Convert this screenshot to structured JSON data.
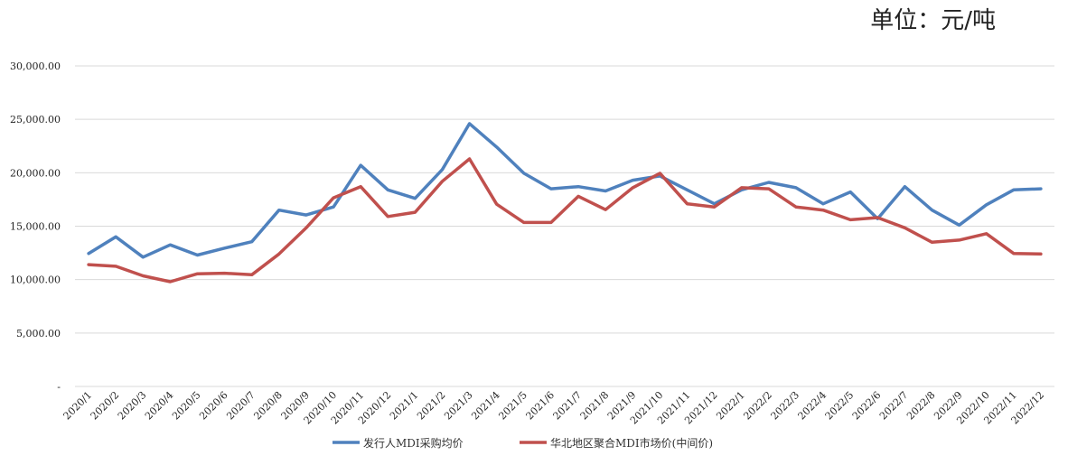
{
  "unit_label": "单位：元/吨",
  "chart_data": {
    "type": "line",
    "title": "",
    "xlabel": "",
    "ylabel": "",
    "ylim": [
      0,
      30000
    ],
    "yticks": [
      {
        "value": 0,
        "label": "-"
      },
      {
        "value": 5000,
        "label": "5,000.00"
      },
      {
        "value": 10000,
        "label": "10,000.00"
      },
      {
        "value": 15000,
        "label": "15,000.00"
      },
      {
        "value": 20000,
        "label": "20,000.00"
      },
      {
        "value": 25000,
        "label": "25,000.00"
      },
      {
        "value": 30000,
        "label": "30,000.00"
      }
    ],
    "grid": true,
    "legend": "bottom",
    "categories": [
      "2020/1",
      "2020/2",
      "2020/3",
      "2020/4",
      "2020/5",
      "2020/6",
      "2020/7",
      "2020/8",
      "2020/9",
      "2020/10",
      "2020/11",
      "2020/12",
      "2021/1",
      "2021/2",
      "2021/3",
      "2021/4",
      "2021/5",
      "2021/6",
      "2021/7",
      "2021/8",
      "2021/9",
      "2021/10",
      "2021/11",
      "2021/12",
      "2022/1",
      "2022/2",
      "2022/3",
      "2022/4",
      "2022/5",
      "2022/6",
      "2022/7",
      "2022/8",
      "2022/9",
      "2022/10",
      "2022/11",
      "2022/12"
    ],
    "series": [
      {
        "name": "发行人MDI采购均价",
        "color": "#4f81bd",
        "values": [
          12450,
          14000,
          12100,
          13250,
          12300,
          12950,
          13550,
          16500,
          16050,
          16800,
          20700,
          18400,
          17600,
          20300,
          24600,
          22400,
          19950,
          18500,
          18700,
          18300,
          19300,
          19700,
          18400,
          17100,
          18400,
          19100,
          18600,
          17100,
          18200,
          15700,
          18700,
          16500,
          15100,
          17000,
          18400,
          18500
        ]
      },
      {
        "name": "华北地区聚合MDI市场价(中间价)",
        "color": "#c0504d",
        "values": [
          11400,
          11250,
          10350,
          9800,
          10550,
          10600,
          10450,
          12400,
          14850,
          17650,
          18700,
          15900,
          16300,
          19200,
          21300,
          17050,
          15350,
          15350,
          17800,
          16550,
          18600,
          19950,
          17100,
          16800,
          18600,
          18500,
          16800,
          16500,
          15600,
          15800,
          14850,
          13500,
          13700,
          14300,
          12450,
          12400
        ]
      }
    ]
  }
}
